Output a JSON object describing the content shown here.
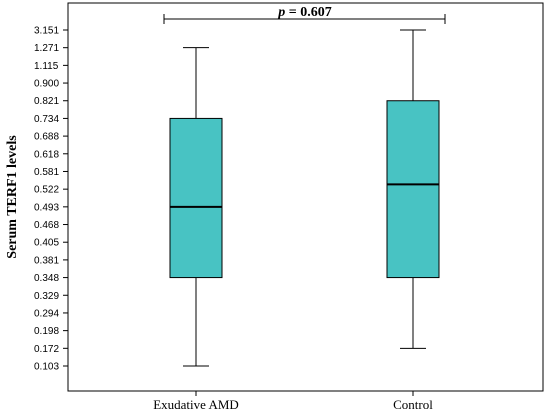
{
  "chart_data": {
    "type": "box",
    "ylabel": "Serum TERF1 levels",
    "xlabel": "",
    "title": "",
    "yticks": [
      "0.103",
      "0.172",
      "0.198",
      "0.294",
      "0.329",
      "0.348",
      "0.381",
      "0.405",
      "0.468",
      "0.493",
      "0.522",
      "0.581",
      "0.618",
      "0.688",
      "0.734",
      "0.821",
      "0.900",
      "1.115",
      "1.271",
      "3.151"
    ],
    "categories": [
      "Exudative AMD",
      "Control"
    ],
    "boxes": [
      {
        "whisker_low": 0.103,
        "q1": 0.348,
        "median": 0.493,
        "q3": 0.734,
        "whisker_high": 1.271
      },
      {
        "whisker_low": 0.172,
        "q1": 0.348,
        "median": 0.538,
        "q3": 0.821,
        "whisker_high": 3.151
      }
    ],
    "box_color": "#48C3C3",
    "annotation": {
      "prefix": "p",
      "text": " = 0.607"
    },
    "grid": false
  }
}
